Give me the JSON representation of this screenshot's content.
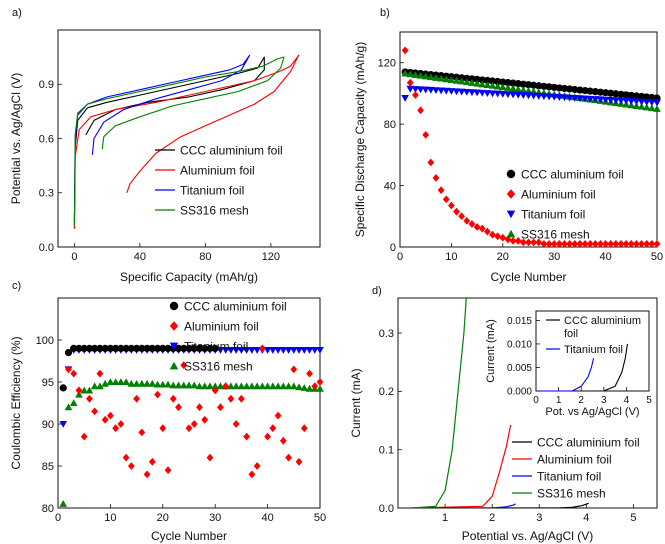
{
  "chart_data": [
    {
      "panel_label": "a)",
      "type": "line",
      "xlabel": "Specific Capacity (mAh/g)",
      "ylabel": "Potential vs. Ag/AgCl (V)",
      "xlim": [
        -10,
        150
      ],
      "ylim": [
        0.0,
        1.2
      ],
      "xticks": [
        0,
        40,
        80,
        120
      ],
      "yticks": [
        0.0,
        0.3,
        0.6,
        0.9
      ],
      "ytick_labels": [
        "0.0",
        "0.3",
        "0.6",
        "0.9"
      ],
      "legend": "bottom-right",
      "series": [
        {
          "name": "CCC aluminium foil",
          "color": "#000000",
          "points": [
            [
              0,
              0.12
            ],
            [
              0.5,
              0.55
            ],
            [
              2,
              0.7
            ],
            [
              8,
              0.77
            ],
            [
              20,
              0.8
            ],
            [
              40,
              0.84
            ],
            [
              60,
              0.88
            ],
            [
              80,
              0.92
            ],
            [
              100,
              0.96
            ],
            [
              112,
              0.99
            ],
            [
              116,
              1.05
            ],
            [
              116,
              0.98
            ],
            [
              110,
              0.92
            ],
            [
              90,
              0.87
            ],
            [
              70,
              0.83
            ],
            [
              45,
              0.8
            ],
            [
              25,
              0.76
            ],
            [
              12,
              0.7
            ],
            [
              7,
              0.62
            ]
          ]
        },
        {
          "name": "Aluminium foil",
          "color": "#ff0000",
          "points": [
            [
              0,
              0.1
            ],
            [
              0.5,
              0.5
            ],
            [
              3,
              0.65
            ],
            [
              10,
              0.72
            ],
            [
              25,
              0.76
            ],
            [
              50,
              0.8
            ],
            [
              70,
              0.84
            ],
            [
              90,
              0.88
            ],
            [
              110,
              0.92
            ],
            [
              125,
              0.97
            ],
            [
              132,
              1.0
            ],
            [
              137,
              1.06
            ],
            [
              132,
              0.97
            ],
            [
              122,
              0.86
            ],
            [
              110,
              0.79
            ],
            [
              100,
              0.75
            ],
            [
              80,
              0.67
            ],
            [
              65,
              0.61
            ],
            [
              50,
              0.52
            ],
            [
              40,
              0.42
            ],
            [
              34,
              0.35
            ],
            [
              32,
              0.3
            ]
          ]
        },
        {
          "name": "Titanium foil",
          "color": "#0000ff",
          "points": [
            [
              0,
              0.14
            ],
            [
              0.5,
              0.6
            ],
            [
              2,
              0.73
            ],
            [
              8,
              0.79
            ],
            [
              20,
              0.83
            ],
            [
              40,
              0.87
            ],
            [
              60,
              0.91
            ],
            [
              80,
              0.95
            ],
            [
              95,
              0.98
            ],
            [
              103,
              1.01
            ],
            [
              107,
              1.06
            ],
            [
              102,
              0.98
            ],
            [
              90,
              0.92
            ],
            [
              70,
              0.87
            ],
            [
              50,
              0.82
            ],
            [
              30,
              0.76
            ],
            [
              18,
              0.69
            ],
            [
              12,
              0.6
            ],
            [
              11,
              0.51
            ]
          ]
        },
        {
          "name": "SS316 mesh",
          "color": "#008000",
          "points": [
            [
              0,
              0.12
            ],
            [
              0.5,
              0.62
            ],
            [
              2,
              0.74
            ],
            [
              8,
              0.79
            ],
            [
              20,
              0.82
            ],
            [
              40,
              0.86
            ],
            [
              60,
              0.9
            ],
            [
              80,
              0.94
            ],
            [
              100,
              0.97
            ],
            [
              115,
              1.0
            ],
            [
              124,
              1.04
            ],
            [
              128,
              1.05
            ],
            [
              126,
              0.99
            ],
            [
              118,
              0.92
            ],
            [
              100,
              0.86
            ],
            [
              80,
              0.82
            ],
            [
              60,
              0.78
            ],
            [
              40,
              0.72
            ],
            [
              25,
              0.67
            ],
            [
              18,
              0.61
            ],
            [
              17,
              0.54
            ]
          ]
        }
      ]
    },
    {
      "panel_label": "b)",
      "type": "scatter",
      "xlabel": "Cycle Number",
      "ylabel": "Specific Discharge Capacity (mAh/g)",
      "xlim": [
        0,
        50
      ],
      "ylim": [
        0,
        140
      ],
      "xticks": [
        0,
        10,
        20,
        30,
        40,
        50
      ],
      "yticks": [
        0,
        40,
        80,
        120
      ],
      "legend": "center-right",
      "series": [
        {
          "name": "CCC aluminium foil",
          "marker": "circle",
          "color": "#000000",
          "y_start": 114,
          "y_end": 97
        },
        {
          "name": "Aluminium foil",
          "marker": "diamond",
          "color": "#ff0000",
          "values": [
            128,
            107,
            99,
            89,
            73,
            55,
            45,
            37,
            31,
            27,
            23,
            20,
            17,
            15,
            13,
            12,
            10,
            8,
            7,
            6,
            5,
            4,
            4,
            3,
            3,
            3,
            3,
            2,
            2,
            2,
            2,
            2,
            2,
            2,
            2,
            2,
            2,
            2,
            2,
            2,
            2,
            2,
            2,
            2,
            2,
            2,
            2,
            2,
            2,
            2
          ]
        },
        {
          "name": "Titanium foil",
          "marker": "triangle-down",
          "color": "#0000ff",
          "y_start": 103,
          "y_end": 94,
          "first": 97
        },
        {
          "name": "SS316 mesh",
          "marker": "triangle-up",
          "color": "#008000",
          "y_start": 113,
          "y_end": 90
        }
      ]
    },
    {
      "panel_label": "c)",
      "type": "scatter",
      "xlabel": "Cycle Number",
      "ylabel": "Coulombic Efficiency (%)",
      "xlim": [
        0,
        50
      ],
      "ylim": [
        80,
        105
      ],
      "xticks": [
        0,
        10,
        20,
        30,
        40,
        50
      ],
      "yticks": [
        80,
        85,
        90,
        95,
        100
      ],
      "legend": "top-right",
      "series": [
        {
          "name": "CCC aluminium foil",
          "marker": "circle",
          "color": "#000000",
          "first": [
            94.3,
            98.5
          ],
          "plateau": 99.0,
          "until": 30
        },
        {
          "name": "Aluminium foil",
          "marker": "diamond",
          "color": "#ff0000",
          "values": [
            null,
            96.5,
            96,
            94,
            88.5,
            93,
            91.5,
            96,
            90.5,
            91,
            89.5,
            90,
            86,
            85,
            93,
            89,
            84,
            85.5,
            93.5,
            89.5,
            84.5,
            93,
            92,
            97,
            89.5,
            90,
            92,
            90.5,
            86,
            94,
            92,
            94.5,
            93,
            90,
            93,
            88.5,
            84,
            85,
            99,
            88.5,
            89.5,
            91,
            88,
            86,
            96.5,
            85.5,
            89.5,
            96,
            94.5,
            95
          ]
        },
        {
          "name": "Titanium foil",
          "marker": "triangle-down",
          "color": "#0000ff",
          "first": [
            90,
            96.5
          ],
          "plateau": 98.8
        },
        {
          "name": "SS316 mesh",
          "marker": "triangle-up",
          "color": "#008000",
          "values": [
            80.5,
            92,
            92.5,
            93.5,
            94,
            94,
            94.5,
            94.5,
            94.8,
            95,
            95,
            95,
            95,
            94.8,
            94.8,
            94.8,
            94.8,
            94.8,
            94.7,
            94.7,
            94.7,
            94.6,
            94.6,
            94.6,
            94.6,
            94.6,
            94.5,
            94.5,
            94.5,
            94.5,
            94.5,
            94.5,
            94.5,
            94.5,
            94.5,
            94.5,
            94.5,
            94.5,
            94.5,
            94.5,
            94.5,
            94.5,
            94.5,
            94.5,
            94.5,
            94.4,
            94.3,
            94.2,
            94.2,
            94.2
          ]
        }
      ]
    },
    {
      "panel_label": "d)",
      "type": "line",
      "xlabel": "Potential vs. Ag/AgCl (V)",
      "ylabel": "Current (mA)",
      "xlim": [
        0,
        5.5
      ],
      "ylim": [
        0,
        0.36
      ],
      "xticks": [
        1,
        2,
        3,
        4,
        5
      ],
      "yticks": [
        0.0,
        0.1,
        0.2,
        0.3
      ],
      "ytick_labels": [
        "0.0",
        "0.1",
        "0.2",
        "0.3"
      ],
      "legend": "bottom-right",
      "series": [
        {
          "name": "CCC aluminium foil",
          "color": "#000000",
          "points": [
            [
              0.3,
              0
            ],
            [
              3.4,
              0
            ],
            [
              3.7,
              0.001
            ],
            [
              3.9,
              0.004
            ],
            [
              4.05,
              0.008
            ]
          ]
        },
        {
          "name": "Aluminium foil",
          "color": "#ff0000",
          "points": [
            [
              0.3,
              0
            ],
            [
              1.8,
              0.003
            ],
            [
              2.0,
              0.02
            ],
            [
              2.15,
              0.06
            ],
            [
              2.3,
              0.105
            ],
            [
              2.4,
              0.145
            ]
          ]
        },
        {
          "name": "Titanium foil",
          "color": "#0000ff",
          "points": [
            [
              0.3,
              0
            ],
            [
              2.0,
              0
            ],
            [
              2.3,
              0.002
            ],
            [
              2.45,
              0.005
            ],
            [
              2.5,
              0.007
            ]
          ]
        },
        {
          "name": "SS316 mesh",
          "color": "#008000",
          "points": [
            [
              0.3,
              0
            ],
            [
              0.8,
              0.003
            ],
            [
              1.0,
              0.03
            ],
            [
              1.15,
              0.1
            ],
            [
              1.3,
              0.22
            ],
            [
              1.4,
              0.3
            ],
            [
              1.45,
              0.36
            ]
          ]
        }
      ],
      "inset": {
        "xlabel": "Pot. vs Ag/AgCl (V)",
        "ylabel": "Current (mA)",
        "xlim": [
          0,
          5
        ],
        "ylim": [
          0,
          0.017
        ],
        "xticks": [
          0,
          1,
          2,
          3,
          4,
          5
        ],
        "yticks": [
          0.0,
          0.005,
          0.01,
          0.015
        ],
        "ytick_labels": [
          "0.000",
          "0.005",
          "0.010",
          "0.015"
        ],
        "legend_lines": [
          [
            "CCC aluminium",
            "foil"
          ],
          [
            "Titanium foil"
          ]
        ],
        "series": [
          {
            "name": "CCC aluminium foil",
            "color": "#000000",
            "points": [
              [
                0,
                0
              ],
              [
                3.0,
                0
              ],
              [
                3.5,
                0.001
              ],
              [
                3.8,
                0.004
              ],
              [
                3.95,
                0.007
              ],
              [
                4.05,
                0.01
              ]
            ]
          },
          {
            "name": "Titanium foil",
            "color": "#0000ff",
            "points": [
              [
                0,
                0
              ],
              [
                1.6,
                0
              ],
              [
                2.0,
                0.001
              ],
              [
                2.3,
                0.003
              ],
              [
                2.45,
                0.005
              ],
              [
                2.55,
                0.007
              ]
            ]
          }
        ]
      }
    }
  ]
}
